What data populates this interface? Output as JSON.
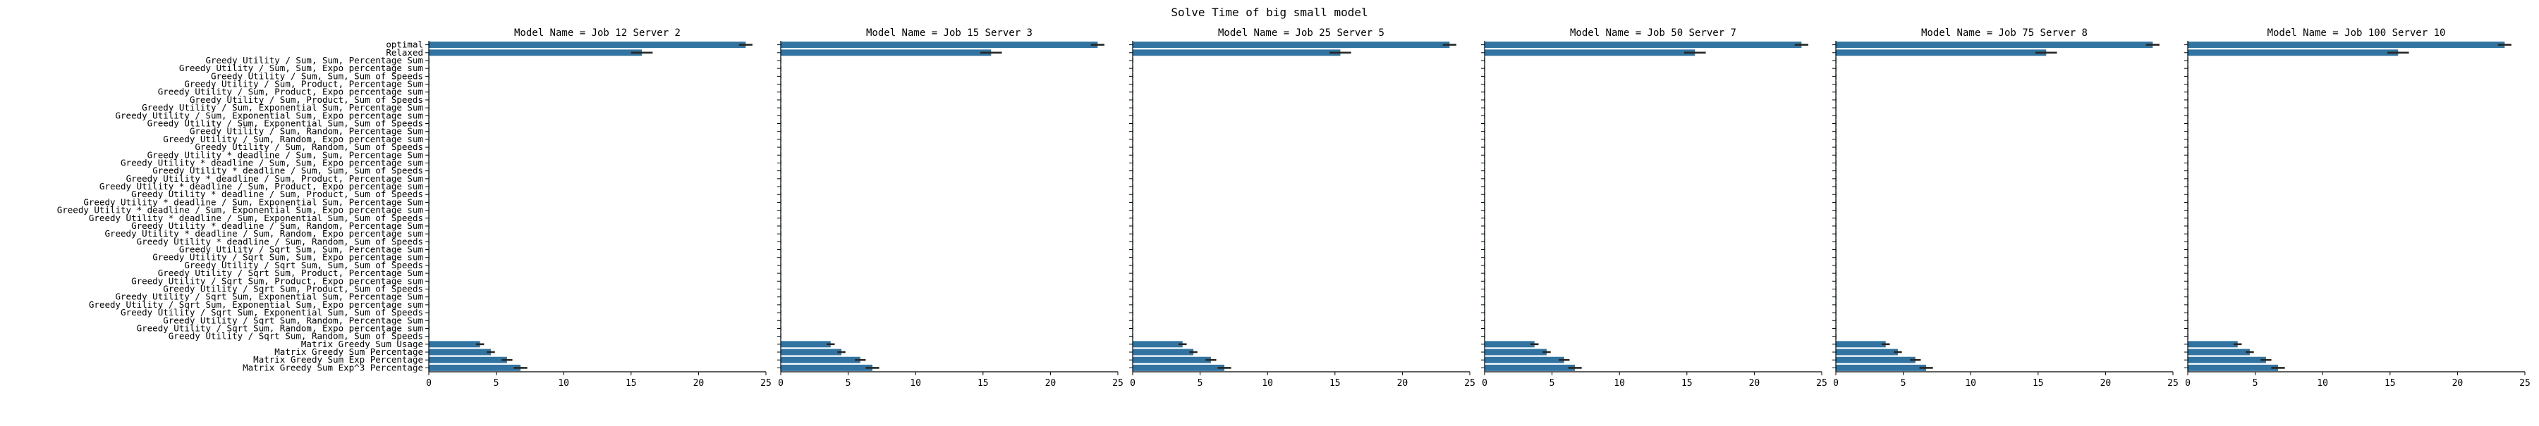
{
  "chart_data": {
    "type": "bar",
    "orientation": "horizontal",
    "title": "Solve Time of big small model",
    "xlim": [
      0,
      25
    ],
    "xticks": [
      0,
      5,
      10,
      15,
      20,
      25
    ],
    "grid": false,
    "bar_color": "#3274a1",
    "errorbar_color": "#262626",
    "categories": [
      "optimal",
      "Relaxed",
      "Greedy Utility / Sum, Sum, Percentage Sum",
      "Greedy Utility / Sum, Sum, Expo percentage sum",
      "Greedy Utility / Sum, Sum, Sum of Speeds",
      "Greedy Utility / Sum, Product, Percentage Sum",
      "Greedy Utility / Sum, Product, Expo percentage sum",
      "Greedy Utility / Sum, Product, Sum of Speeds",
      "Greedy Utility / Sum, Exponential Sum, Percentage Sum",
      "Greedy Utility / Sum, Exponential Sum, Expo percentage sum",
      "Greedy Utility / Sum, Exponential Sum, Sum of Speeds",
      "Greedy Utility / Sum, Random, Percentage Sum",
      "Greedy Utility / Sum, Random, Expo percentage sum",
      "Greedy Utility / Sum, Random, Sum of Speeds",
      "Greedy Utility * deadline / Sum, Sum, Percentage Sum",
      "Greedy Utility * deadline / Sum, Sum, Expo percentage sum",
      "Greedy Utility * deadline / Sum, Sum, Sum of Speeds",
      "Greedy Utility * deadline / Sum, Product, Percentage Sum",
      "Greedy Utility * deadline / Sum, Product, Expo percentage sum",
      "Greedy Utility * deadline / Sum, Product, Sum of Speeds",
      "Greedy Utility * deadline / Sum, Exponential Sum, Percentage Sum",
      "Greedy Utility * deadline / Sum, Exponential Sum, Expo percentage sum",
      "Greedy Utility * deadline / Sum, Exponential Sum, Sum of Speeds",
      "Greedy Utility * deadline / Sum, Random, Percentage Sum",
      "Greedy Utility * deadline / Sum, Random, Expo percentage sum",
      "Greedy Utility * deadline / Sum, Random, Sum of Speeds",
      "Greedy Utility / Sqrt Sum, Sum, Percentage Sum",
      "Greedy Utility / Sqrt Sum, Sum, Expo percentage sum",
      "Greedy Utility / Sqrt Sum, Sum, Sum of Speeds",
      "Greedy Utility / Sqrt Sum, Product, Percentage Sum",
      "Greedy Utility / Sqrt Sum, Product, Expo percentage sum",
      "Greedy Utility / Sqrt Sum, Product, Sum of Speeds",
      "Greedy Utility / Sqrt Sum, Exponential Sum, Percentage Sum",
      "Greedy Utility / Sqrt Sum, Exponential Sum, Expo percentage sum",
      "Greedy Utility / Sqrt Sum, Exponential Sum, Sum of Speeds",
      "Greedy Utility / Sqrt Sum, Random, Percentage Sum",
      "Greedy Utility / Sqrt Sum, Random, Expo percentage sum",
      "Greedy Utility / Sqrt Sum, Random, Sum of Speeds",
      "Matrix Greedy Sum Usage",
      "Matrix Greedy Sum Percentage",
      "Matrix Greedy Sum Exp Percentage",
      "Matrix Greedy Sum Exp^3 Percentage"
    ],
    "panels": [
      {
        "title": "Model Name =  Job 12 Server 2",
        "values": [
          23.5,
          15.8,
          0.05,
          0.05,
          0.05,
          0.05,
          0.05,
          0.05,
          0.05,
          0.05,
          0.05,
          0.05,
          0.05,
          0.05,
          0.05,
          0.05,
          0.05,
          0.05,
          0.05,
          0.05,
          0.05,
          0.05,
          0.05,
          0.05,
          0.05,
          0.05,
          0.05,
          0.05,
          0.05,
          0.05,
          0.05,
          0.05,
          0.05,
          0.05,
          0.05,
          0.05,
          0.05,
          0.05,
          3.8,
          4.6,
          5.8,
          6.8
        ],
        "errors": [
          0.5,
          0.8,
          0,
          0,
          0,
          0,
          0,
          0,
          0,
          0,
          0,
          0,
          0,
          0,
          0,
          0,
          0,
          0,
          0,
          0,
          0,
          0,
          0,
          0,
          0,
          0,
          0,
          0,
          0,
          0,
          0,
          0,
          0,
          0,
          0,
          0,
          0,
          0,
          0.3,
          0.3,
          0.4,
          0.5
        ]
      },
      {
        "title": "Model Name =  Job 15 Server 3",
        "values": [
          23.5,
          15.6,
          0.05,
          0.05,
          0.05,
          0.05,
          0.05,
          0.05,
          0.05,
          0.05,
          0.05,
          0.05,
          0.05,
          0.05,
          0.05,
          0.05,
          0.05,
          0.05,
          0.05,
          0.05,
          0.05,
          0.05,
          0.05,
          0.05,
          0.05,
          0.05,
          0.05,
          0.05,
          0.05,
          0.05,
          0.05,
          0.05,
          0.05,
          0.05,
          0.05,
          0.05,
          0.05,
          0.05,
          3.7,
          4.5,
          5.9,
          6.8
        ],
        "errors": [
          0.5,
          0.8,
          0,
          0,
          0,
          0,
          0,
          0,
          0,
          0,
          0,
          0,
          0,
          0,
          0,
          0,
          0,
          0,
          0,
          0,
          0,
          0,
          0,
          0,
          0,
          0,
          0,
          0,
          0,
          0,
          0,
          0,
          0,
          0,
          0,
          0,
          0,
          0,
          0.3,
          0.3,
          0.4,
          0.5
        ]
      },
      {
        "title": "Model Name =  Job 25 Server 5",
        "values": [
          23.5,
          15.4,
          0.05,
          0.05,
          0.05,
          0.05,
          0.05,
          0.05,
          0.05,
          0.05,
          0.05,
          0.05,
          0.05,
          0.05,
          0.05,
          0.05,
          0.05,
          0.05,
          0.05,
          0.05,
          0.05,
          0.05,
          0.05,
          0.05,
          0.05,
          0.05,
          0.05,
          0.05,
          0.05,
          0.05,
          0.05,
          0.05,
          0.05,
          0.05,
          0.05,
          0.05,
          0.05,
          0.05,
          3.7,
          4.5,
          5.8,
          6.8
        ],
        "errors": [
          0.5,
          0.8,
          0,
          0,
          0,
          0,
          0,
          0,
          0,
          0,
          0,
          0,
          0,
          0,
          0,
          0,
          0,
          0,
          0,
          0,
          0,
          0,
          0,
          0,
          0,
          0,
          0,
          0,
          0,
          0,
          0,
          0,
          0,
          0,
          0,
          0,
          0,
          0,
          0.3,
          0.3,
          0.4,
          0.5
        ]
      },
      {
        "title": "Model Name =  Job 50 Server 7",
        "values": [
          23.5,
          15.6,
          0.05,
          0.05,
          0.05,
          0.05,
          0.05,
          0.05,
          0.05,
          0.05,
          0.05,
          0.05,
          0.05,
          0.05,
          0.05,
          0.05,
          0.05,
          0.05,
          0.05,
          0.05,
          0.05,
          0.05,
          0.05,
          0.05,
          0.05,
          0.05,
          0.05,
          0.05,
          0.05,
          0.05,
          0.05,
          0.05,
          0.05,
          0.05,
          0.05,
          0.05,
          0.05,
          0.05,
          3.7,
          4.6,
          5.9,
          6.7
        ],
        "errors": [
          0.5,
          0.8,
          0,
          0,
          0,
          0,
          0,
          0,
          0,
          0,
          0,
          0,
          0,
          0,
          0,
          0,
          0,
          0,
          0,
          0,
          0,
          0,
          0,
          0,
          0,
          0,
          0,
          0,
          0,
          0,
          0,
          0,
          0,
          0,
          0,
          0,
          0,
          0,
          0.3,
          0.3,
          0.4,
          0.5
        ]
      },
      {
        "title": "Model Name =  Job 75 Server 8",
        "values": [
          23.5,
          15.6,
          0.05,
          0.05,
          0.05,
          0.05,
          0.05,
          0.05,
          0.05,
          0.05,
          0.05,
          0.05,
          0.05,
          0.05,
          0.05,
          0.05,
          0.05,
          0.05,
          0.05,
          0.05,
          0.05,
          0.05,
          0.05,
          0.05,
          0.05,
          0.05,
          0.05,
          0.05,
          0.05,
          0.05,
          0.05,
          0.05,
          0.05,
          0.05,
          0.05,
          0.05,
          0.05,
          0.05,
          3.7,
          4.6,
          5.9,
          6.7
        ],
        "errors": [
          0.5,
          0.8,
          0,
          0,
          0,
          0,
          0,
          0,
          0,
          0,
          0,
          0,
          0,
          0,
          0,
          0,
          0,
          0,
          0,
          0,
          0,
          0,
          0,
          0,
          0,
          0,
          0,
          0,
          0,
          0,
          0,
          0,
          0,
          0,
          0,
          0,
          0,
          0,
          0.3,
          0.3,
          0.4,
          0.5
        ]
      },
      {
        "title": "Model Name =  Job 100 Server 10",
        "values": [
          23.5,
          15.6,
          0.05,
          0.05,
          0.05,
          0.05,
          0.05,
          0.05,
          0.05,
          0.05,
          0.05,
          0.05,
          0.05,
          0.05,
          0.05,
          0.05,
          0.05,
          0.05,
          0.05,
          0.05,
          0.05,
          0.05,
          0.05,
          0.05,
          0.05,
          0.05,
          0.05,
          0.05,
          0.05,
          0.05,
          0.05,
          0.05,
          0.05,
          0.05,
          0.05,
          0.05,
          0.05,
          0.05,
          3.7,
          4.6,
          5.8,
          6.7
        ],
        "errors": [
          0.5,
          0.8,
          0,
          0,
          0,
          0,
          0,
          0,
          0,
          0,
          0,
          0,
          0,
          0,
          0,
          0,
          0,
          0,
          0,
          0,
          0,
          0,
          0,
          0,
          0,
          0,
          0,
          0,
          0,
          0,
          0,
          0,
          0,
          0,
          0,
          0,
          0,
          0,
          0.3,
          0.3,
          0.4,
          0.5
        ]
      }
    ]
  }
}
